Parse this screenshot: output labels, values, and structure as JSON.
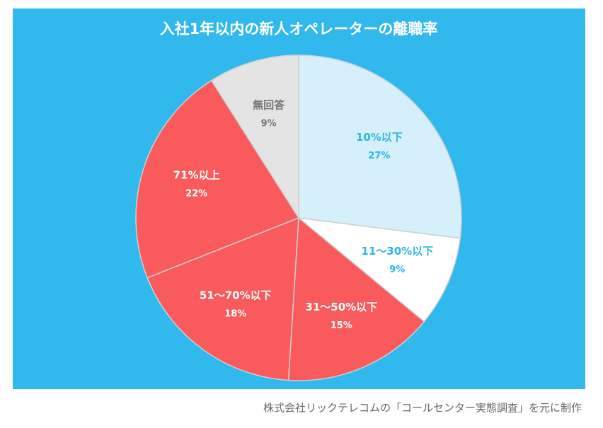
{
  "chart_data": {
    "type": "pie",
    "title": "入社1年以内の新人オペレーターの離職率",
    "categories": [
      "10%以下",
      "11〜30%以下",
      "31〜50%以下",
      "51〜70%以下",
      "71%以上",
      "無回答"
    ],
    "values": [
      27,
      9,
      15,
      18,
      22,
      9
    ],
    "value_labels": [
      "27%",
      "9%",
      "15%",
      "18%",
      "22%",
      "9%"
    ],
    "colors": [
      "#d5f0fb",
      "#ffffff",
      "#f95a5c",
      "#f95a5c",
      "#f95a5c",
      "#e4e4e4"
    ],
    "label_colors": [
      "#2cb5ea",
      "#2cb5ea",
      "#ffffff",
      "#ffffff",
      "#ffffff",
      "#777777"
    ],
    "background": "#31b9ee",
    "source": "株式会社リックテレコムの「コールセンター実態調査」を元に制作"
  }
}
